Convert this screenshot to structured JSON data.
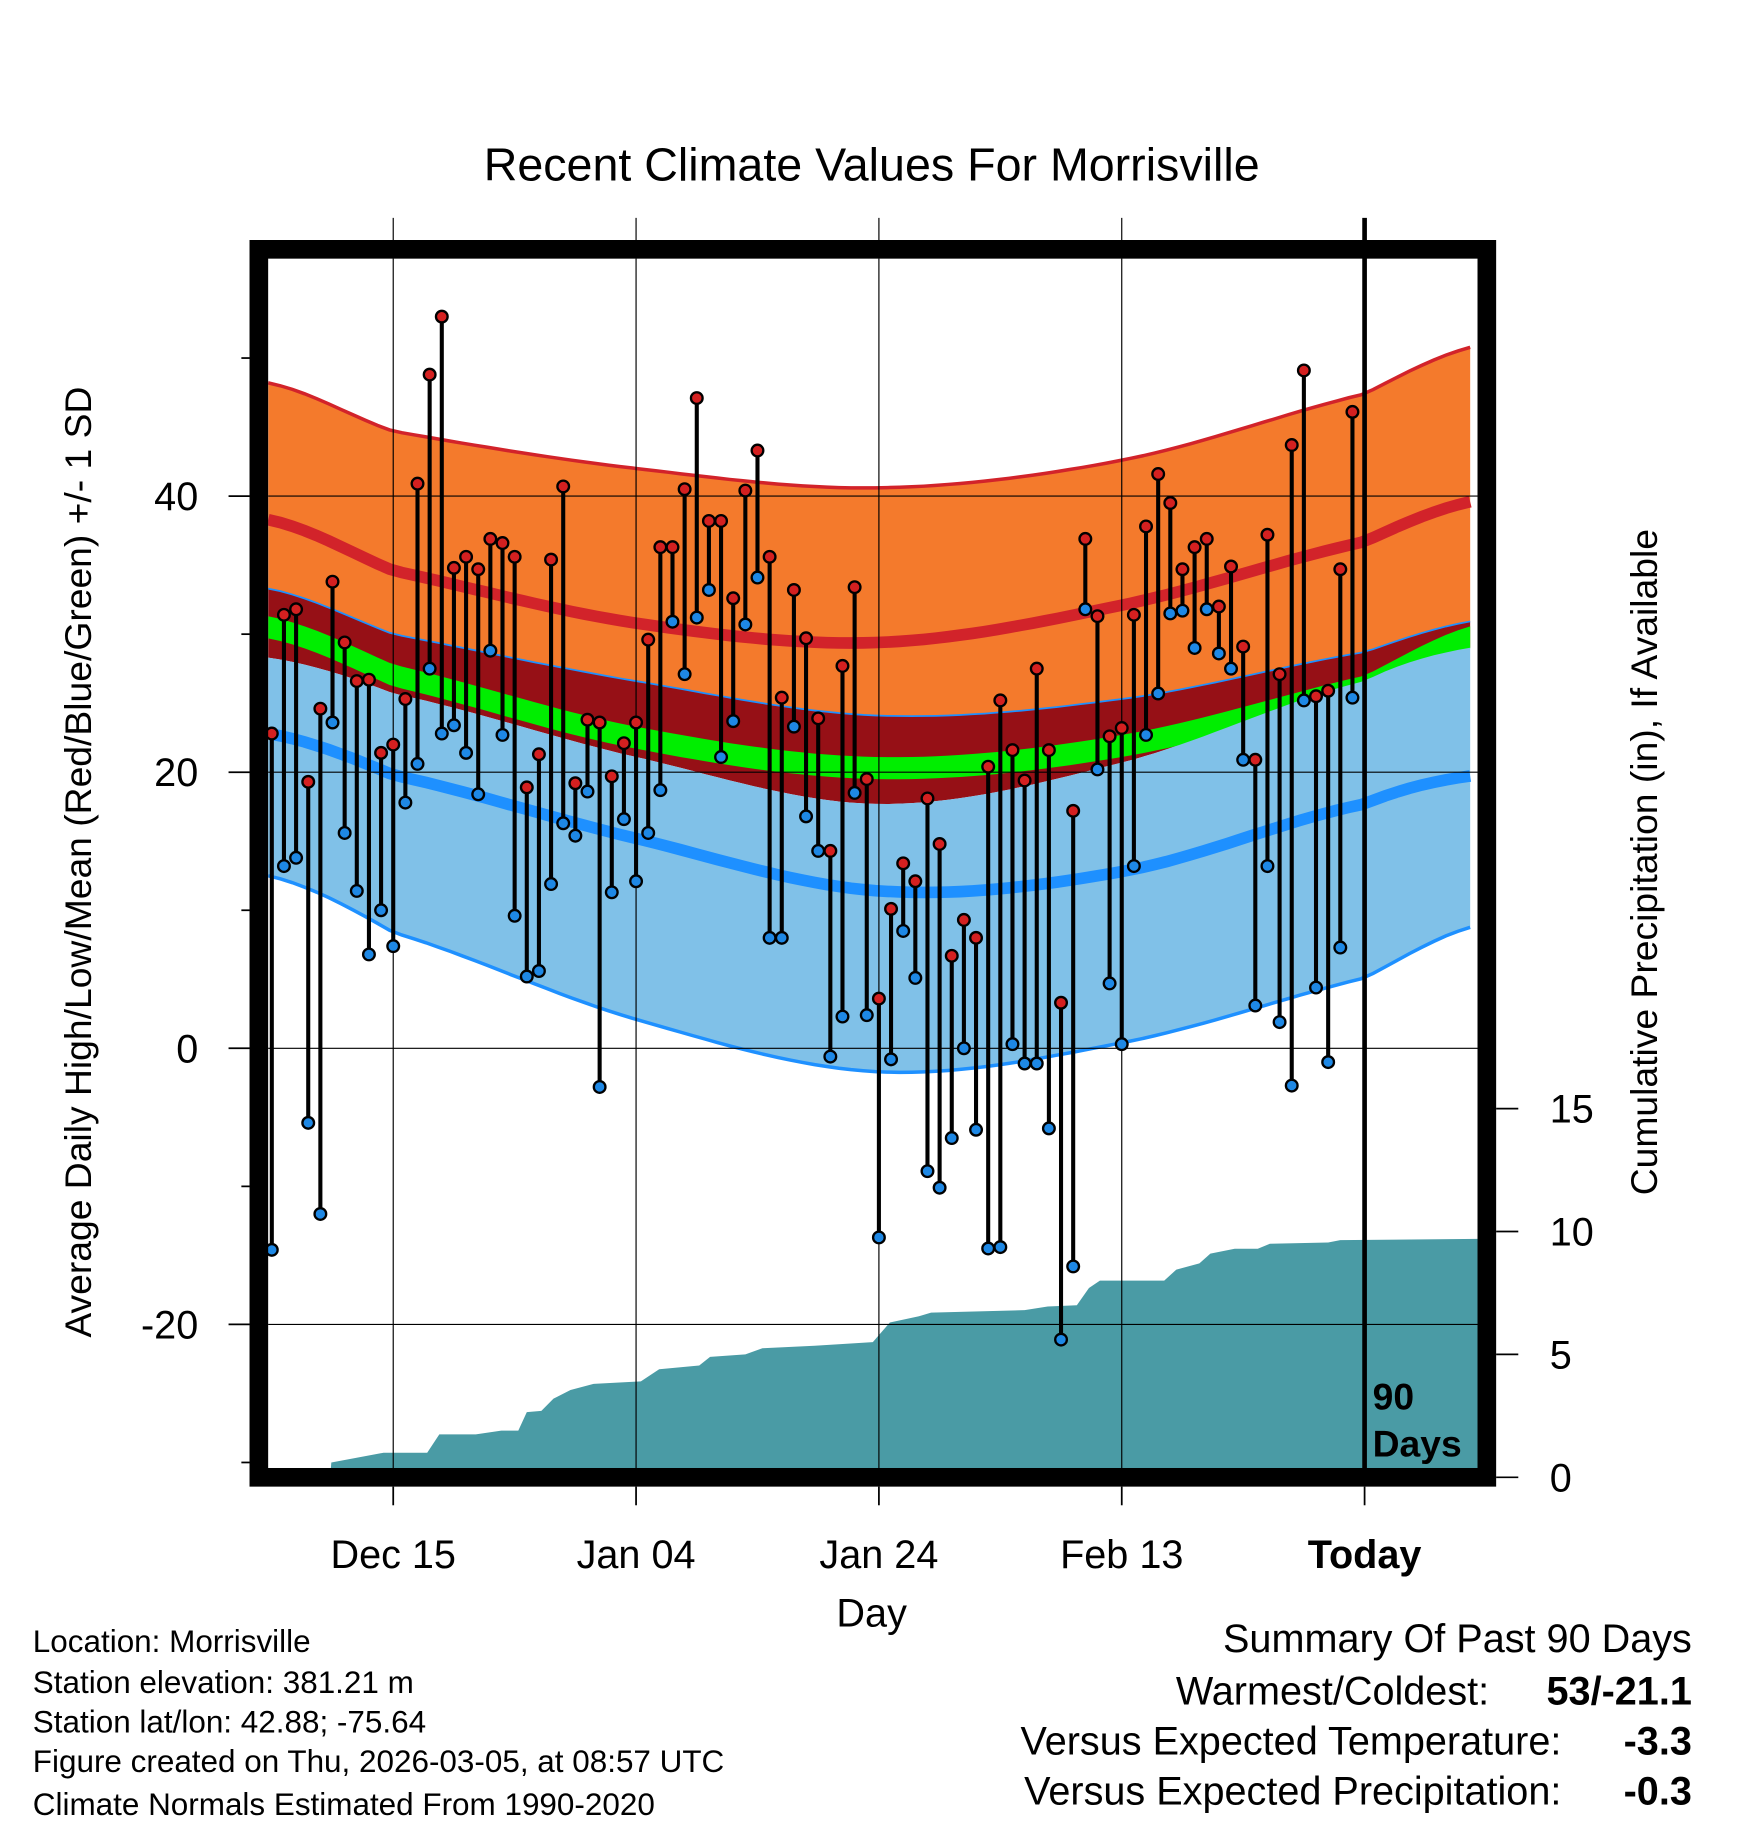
{
  "chart_data": {
    "type": "line",
    "title": "Recent Climate Values For Morrisville",
    "xlabel": "Day",
    "ylabel": "Average Daily High/Low/Mean (Red/Blue/Green) +/- 1 SD",
    "ylabel_right": "Cumulative Precipitation (in), If Available",
    "ylim": [
      -30.4,
      57.2
    ],
    "ylim_right": [
      0,
      46.8
    ],
    "xlim_days": [
      -0.3,
      99.3
    ],
    "x_ticks": [
      {
        "day": 10,
        "label": "Dec 15"
      },
      {
        "day": 30,
        "label": "Jan 04"
      },
      {
        "day": 50,
        "label": "Jan 24"
      },
      {
        "day": 70,
        "label": "Feb 13"
      },
      {
        "day": 90,
        "label": "Today"
      }
    ],
    "y_ticks": [
      40,
      20,
      0,
      -20
    ],
    "y_minor_ticks": [
      50,
      30,
      10,
      -10,
      -30
    ],
    "y_tick_labels": [
      "40",
      "20",
      "0",
      "-20"
    ],
    "y_right_ticks": [
      0,
      5,
      10,
      15
    ],
    "y_right_tick_labels": [
      "0",
      "5",
      "10",
      "15"
    ],
    "period_label": [
      "90",
      "Days"
    ],
    "daily_high": [
      22.8,
      31.4,
      31.8,
      19.3,
      24.6,
      33.8,
      29.4,
      26.6,
      26.7,
      21.4,
      22.0,
      25.3,
      40.9,
      48.8,
      53.0,
      34.8,
      35.6,
      34.7,
      36.9,
      36.6,
      35.6,
      18.9,
      21.3,
      35.4,
      40.7,
      19.2,
      23.8,
      23.6,
      19.7,
      22.1,
      23.6,
      29.6,
      36.3,
      36.3,
      40.5,
      47.1,
      38.2,
      38.2,
      32.6,
      40.4,
      43.3,
      35.6,
      25.4,
      33.2,
      29.7,
      23.9,
      14.3,
      27.7,
      33.4,
      19.5,
      3.6,
      10.1,
      13.4,
      12.1,
      18.1,
      14.8,
      6.7,
      9.3,
      8.0,
      20.4,
      25.2,
      21.6,
      19.4,
      27.5,
      21.6,
      3.3,
      17.2,
      36.9,
      31.3,
      22.6,
      23.2,
      31.4,
      37.8,
      41.6,
      39.5,
      34.7,
      36.3,
      36.9,
      32.0,
      34.9,
      29.1,
      20.9,
      37.2,
      27.1,
      43.7,
      49.1,
      25.5,
      25.9,
      34.7,
      46.1
    ],
    "daily_low": [
      -14.6,
      13.2,
      13.8,
      -5.4,
      -12.0,
      23.6,
      15.6,
      11.4,
      6.8,
      10.0,
      7.4,
      17.8,
      20.6,
      27.5,
      22.8,
      23.4,
      21.4,
      18.4,
      28.8,
      22.7,
      9.6,
      5.2,
      5.6,
      11.9,
      16.3,
      15.4,
      18.6,
      -2.8,
      11.3,
      16.6,
      12.1,
      15.6,
      18.7,
      30.9,
      27.1,
      31.2,
      33.2,
      21.1,
      23.7,
      30.7,
      34.1,
      8.0,
      8.0,
      23.3,
      16.8,
      14.3,
      -0.6,
      2.3,
      18.5,
      2.4,
      -13.7,
      -0.8,
      8.5,
      5.1,
      -8.9,
      -10.1,
      -6.5,
      0.0,
      -5.9,
      -14.5,
      -14.4,
      0.3,
      -1.1,
      -1.1,
      -5.8,
      -21.1,
      -15.8,
      31.8,
      20.2,
      4.7,
      0.3,
      13.2,
      22.7,
      25.7,
      31.5,
      31.7,
      29.0,
      31.8,
      28.6,
      27.5,
      20.9,
      3.1,
      13.2,
      1.9,
      -2.7,
      25.2,
      4.4,
      -1.0,
      7.3,
      25.4
    ],
    "normals": {
      "days": [
        -0.3,
        10,
        30,
        50,
        70,
        90,
        99.3
      ],
      "high_plus_sd": [
        48.2,
        44.7,
        42.0,
        40.6,
        42.6,
        47.4,
        50.9
      ],
      "mean_high": [
        38.3,
        34.6,
        30.8,
        29.4,
        32.1,
        36.7,
        39.7
      ],
      "high_minus_sd": [
        33.3,
        30.0,
        26.6,
        24.1,
        25.3,
        28.7,
        31.0
      ],
      "mean": [
        30.5,
        27.0,
        22.5,
        20.3,
        21.9,
        26.2,
        29.9
      ],
      "low_plus_sd": [
        28.3,
        25.7,
        21.1,
        17.7,
        20.7,
        26.6,
        29.1
      ],
      "mean_low": [
        22.8,
        19.8,
        15.2,
        11.4,
        12.8,
        17.7,
        19.8
      ],
      "low_minus_sd": [
        12.5,
        8.4,
        2.1,
        -1.7,
        0.4,
        5.1,
        8.9
      ]
    },
    "cumulative_precip_steps": [
      [
        4.8,
        0
      ],
      [
        4.9,
        0.6
      ],
      [
        9.2,
        1.0
      ],
      [
        12.8,
        1.0
      ],
      [
        13.8,
        1.75
      ],
      [
        16.8,
        1.75
      ],
      [
        18.9,
        1.9
      ],
      [
        20.3,
        1.9
      ],
      [
        21.0,
        2.65
      ],
      [
        22.2,
        2.7
      ],
      [
        23.2,
        3.2
      ],
      [
        24.6,
        3.55
      ],
      [
        26.5,
        3.8
      ],
      [
        30.4,
        3.9
      ],
      [
        31.9,
        4.4
      ],
      [
        35.2,
        4.55
      ],
      [
        36.1,
        4.9
      ],
      [
        39.0,
        5.0
      ],
      [
        40.4,
        5.25
      ],
      [
        44.7,
        5.35
      ],
      [
        49.5,
        5.5
      ],
      [
        50.9,
        6.3
      ],
      [
        53.3,
        6.55
      ],
      [
        54.3,
        6.7
      ],
      [
        62.0,
        6.8
      ],
      [
        63.9,
        6.95
      ],
      [
        66.3,
        7.0
      ],
      [
        67.3,
        7.7
      ],
      [
        68.2,
        8.0
      ],
      [
        73.5,
        8.0
      ],
      [
        74.5,
        8.45
      ],
      [
        76.4,
        8.7
      ],
      [
        77.3,
        9.1
      ],
      [
        79.3,
        9.3
      ],
      [
        81.2,
        9.3
      ],
      [
        82.2,
        9.5
      ],
      [
        87.0,
        9.55
      ],
      [
        88.0,
        9.65
      ],
      [
        99.3,
        9.7
      ]
    ],
    "colors": {
      "high_band": "#f47a2c",
      "mean_high": "#d2232a",
      "mid_band": "#961016",
      "mean": "#00ee00",
      "low_band": "#80c1e8",
      "mean_low": "#1e90ff",
      "precip": "#4a9ba5",
      "high_point": "#d42020",
      "low_point": "#1e88e5"
    }
  },
  "footer": {
    "location": "Location: Morrisville",
    "elevation": "Station elevation: 381.21 m",
    "latlon": "Station lat/lon: 42.88; -75.64",
    "created": "Figure created on Thu, 2026-03-05, at 08:57 UTC",
    "normals": "Climate Normals Estimated From 1990-2020"
  },
  "summary": {
    "title": "Summary Of Past 90 Days",
    "warmest_label": "Warmest/Coldest:",
    "warmest_value": "53/-21.1",
    "temp_label": "Versus Expected Temperature:",
    "temp_value": "-3.3",
    "temp_color": "#1e90ff",
    "precip_label": "Versus Expected Precipitation:",
    "precip_value": "-0.3",
    "precip_color": "#a0522d"
  }
}
